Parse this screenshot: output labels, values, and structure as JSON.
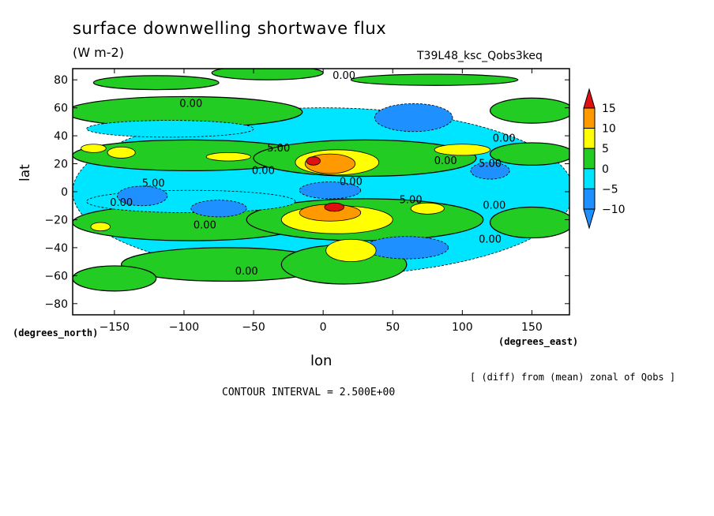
{
  "chart_data": {
    "type": "heatmap",
    "title": "surface downwelling shortwave flux",
    "units": "(W m-2)",
    "run_id": "T39L48_ksc_Qobs3keq",
    "xlabel": "lon",
    "ylabel": "lat",
    "x_units": "(degrees_east)",
    "y_units": "(degrees_north)",
    "footnote": "[ (diff) from (mean) zonal of Qobs ]",
    "contour_interval_text": "CONTOUR INTERVAL = 2.500E+00",
    "xlim": [
      -180,
      177
    ],
    "ylim": [
      -88,
      88
    ],
    "x_ticks": [
      {
        "v": -150,
        "label": "−150"
      },
      {
        "v": -100,
        "label": "−100"
      },
      {
        "v": -50,
        "label": "−50"
      },
      {
        "v": 0,
        "label": "0"
      },
      {
        "v": 50,
        "label": "50"
      },
      {
        "v": 100,
        "label": "100"
      },
      {
        "v": 150,
        "label": "150"
      }
    ],
    "y_ticks": [
      {
        "v": 80,
        "label": "80"
      },
      {
        "v": 60,
        "label": "60"
      },
      {
        "v": 40,
        "label": "40"
      },
      {
        "v": 20,
        "label": "20"
      },
      {
        "v": 0,
        "label": "0"
      },
      {
        "v": -20,
        "label": "−20"
      },
      {
        "v": -40,
        "label": "−40"
      },
      {
        "v": -60,
        "label": "−60"
      },
      {
        "v": -80,
        "label": "−80"
      }
    ],
    "colorbar": {
      "levels": [
        -10,
        -5,
        0,
        5,
        10,
        15
      ],
      "labels": [
        "−10",
        "−5",
        "0",
        "5",
        "10",
        "15"
      ],
      "colors": [
        "#1e90ff",
        "#00e5ff",
        "#22cc22",
        "#ffff00",
        "#ff9900",
        "#e01010"
      ]
    },
    "contour_labels": [
      {
        "lon": 15,
        "lat": 83,
        "text": "0.00"
      },
      {
        "lon": -95,
        "lat": 63,
        "text": "0.00"
      },
      {
        "lon": 130,
        "lat": 38,
        "text": "0.00"
      },
      {
        "lon": -32,
        "lat": 31,
        "text": "5.00"
      },
      {
        "lon": 88,
        "lat": 22,
        "text": "0.00"
      },
      {
        "lon": 120,
        "lat": 20,
        "text": "5.00"
      },
      {
        "lon": -43,
        "lat": 15,
        "text": "0.00"
      },
      {
        "lon": 20,
        "lat": 7,
        "text": "0.00"
      },
      {
        "lon": -122,
        "lat": 6,
        "text": "5.00"
      },
      {
        "lon": 63,
        "lat": -6,
        "text": "5.00"
      },
      {
        "lon": -145,
        "lat": -8,
        "text": "0.00"
      },
      {
        "lon": 123,
        "lat": -10,
        "text": "0.00"
      },
      {
        "lon": -85,
        "lat": -24,
        "text": "0.00"
      },
      {
        "lon": 120,
        "lat": -34,
        "text": "0.00"
      },
      {
        "lon": -55,
        "lat": -57,
        "text": "0.00"
      }
    ],
    "regions": [
      {
        "level": -5,
        "lon": 0,
        "lat": 0,
        "rx": 180,
        "ry": 60
      },
      {
        "level": 0,
        "lon": -40,
        "lat": 85,
        "rx": 40,
        "ry": 5
      },
      {
        "level": 0,
        "lon": -120,
        "lat": 78,
        "rx": 45,
        "ry": 5
      },
      {
        "level": 0,
        "lon": 80,
        "lat": 80,
        "rx": 60,
        "ry": 4
      },
      {
        "level": 0,
        "lon": -100,
        "lat": 57,
        "rx": 85,
        "ry": 11
      },
      {
        "level": 0,
        "lon": 150,
        "lat": 58,
        "rx": 30,
        "ry": 9
      },
      {
        "level": 0,
        "lon": -95,
        "lat": 26,
        "rx": 85,
        "ry": 11
      },
      {
        "level": 0,
        "lon": 30,
        "lat": 24,
        "rx": 80,
        "ry": 13
      },
      {
        "level": 0,
        "lon": 150,
        "lat": 27,
        "rx": 30,
        "ry": 8
      },
      {
        "level": 0,
        "lon": -95,
        "lat": -22,
        "rx": 85,
        "ry": 13
      },
      {
        "level": 0,
        "lon": 30,
        "lat": -20,
        "rx": 85,
        "ry": 15
      },
      {
        "level": 0,
        "lon": 150,
        "lat": -22,
        "rx": 30,
        "ry": 11
      },
      {
        "level": 0,
        "lon": -70,
        "lat": -52,
        "rx": 75,
        "ry": 12
      },
      {
        "level": 0,
        "lon": 15,
        "lat": -52,
        "rx": 45,
        "ry": 14
      },
      {
        "level": 0,
        "lon": -150,
        "lat": -62,
        "rx": 30,
        "ry": 9
      },
      {
        "level": -5,
        "lon": -110,
        "lat": 45,
        "rx": 60,
        "ry": 6
      },
      {
        "level": -5,
        "lon": -95,
        "lat": -7,
        "rx": 75,
        "ry": 8
      },
      {
        "level": -10,
        "lon": 65,
        "lat": 53,
        "rx": 28,
        "ry": 10
      },
      {
        "level": -10,
        "lon": -130,
        "lat": -3,
        "rx": 18,
        "ry": 7
      },
      {
        "level": -10,
        "lon": -75,
        "lat": -12,
        "rx": 20,
        "ry": 6
      },
      {
        "level": -10,
        "lon": 5,
        "lat": 1,
        "rx": 22,
        "ry": 6
      },
      {
        "level": -10,
        "lon": 60,
        "lat": -40,
        "rx": 30,
        "ry": 8
      },
      {
        "level": -10,
        "lon": 120,
        "lat": 15,
        "rx": 14,
        "ry": 6
      },
      {
        "level": 5,
        "lon": 10,
        "lat": 21,
        "rx": 30,
        "ry": 9
      },
      {
        "level": 5,
        "lon": 10,
        "lat": -20,
        "rx": 40,
        "ry": 10
      },
      {
        "level": 5,
        "lon": 20,
        "lat": -42,
        "rx": 18,
        "ry": 8
      },
      {
        "level": 5,
        "lon": -68,
        "lat": 25,
        "rx": 16,
        "ry": 3
      },
      {
        "level": 5,
        "lon": -145,
        "lat": 28,
        "rx": 10,
        "ry": 4
      },
      {
        "level": 5,
        "lon": -165,
        "lat": 31,
        "rx": 9,
        "ry": 3
      },
      {
        "level": 5,
        "lon": -160,
        "lat": -25,
        "rx": 7,
        "ry": 3
      },
      {
        "level": 5,
        "lon": 75,
        "lat": -12,
        "rx": 12,
        "ry": 4
      },
      {
        "level": 5,
        "lon": 100,
        "lat": 30,
        "rx": 20,
        "ry": 4
      },
      {
        "level": 10,
        "lon": 5,
        "lat": 20,
        "rx": 18,
        "ry": 7
      },
      {
        "level": 10,
        "lon": 5,
        "lat": -15,
        "rx": 22,
        "ry": 6
      },
      {
        "level": 15,
        "lon": -7,
        "lat": 22,
        "rx": 5,
        "ry": 3
      },
      {
        "level": 15,
        "lon": 8,
        "lat": -11,
        "rx": 7,
        "ry": 3
      }
    ]
  }
}
